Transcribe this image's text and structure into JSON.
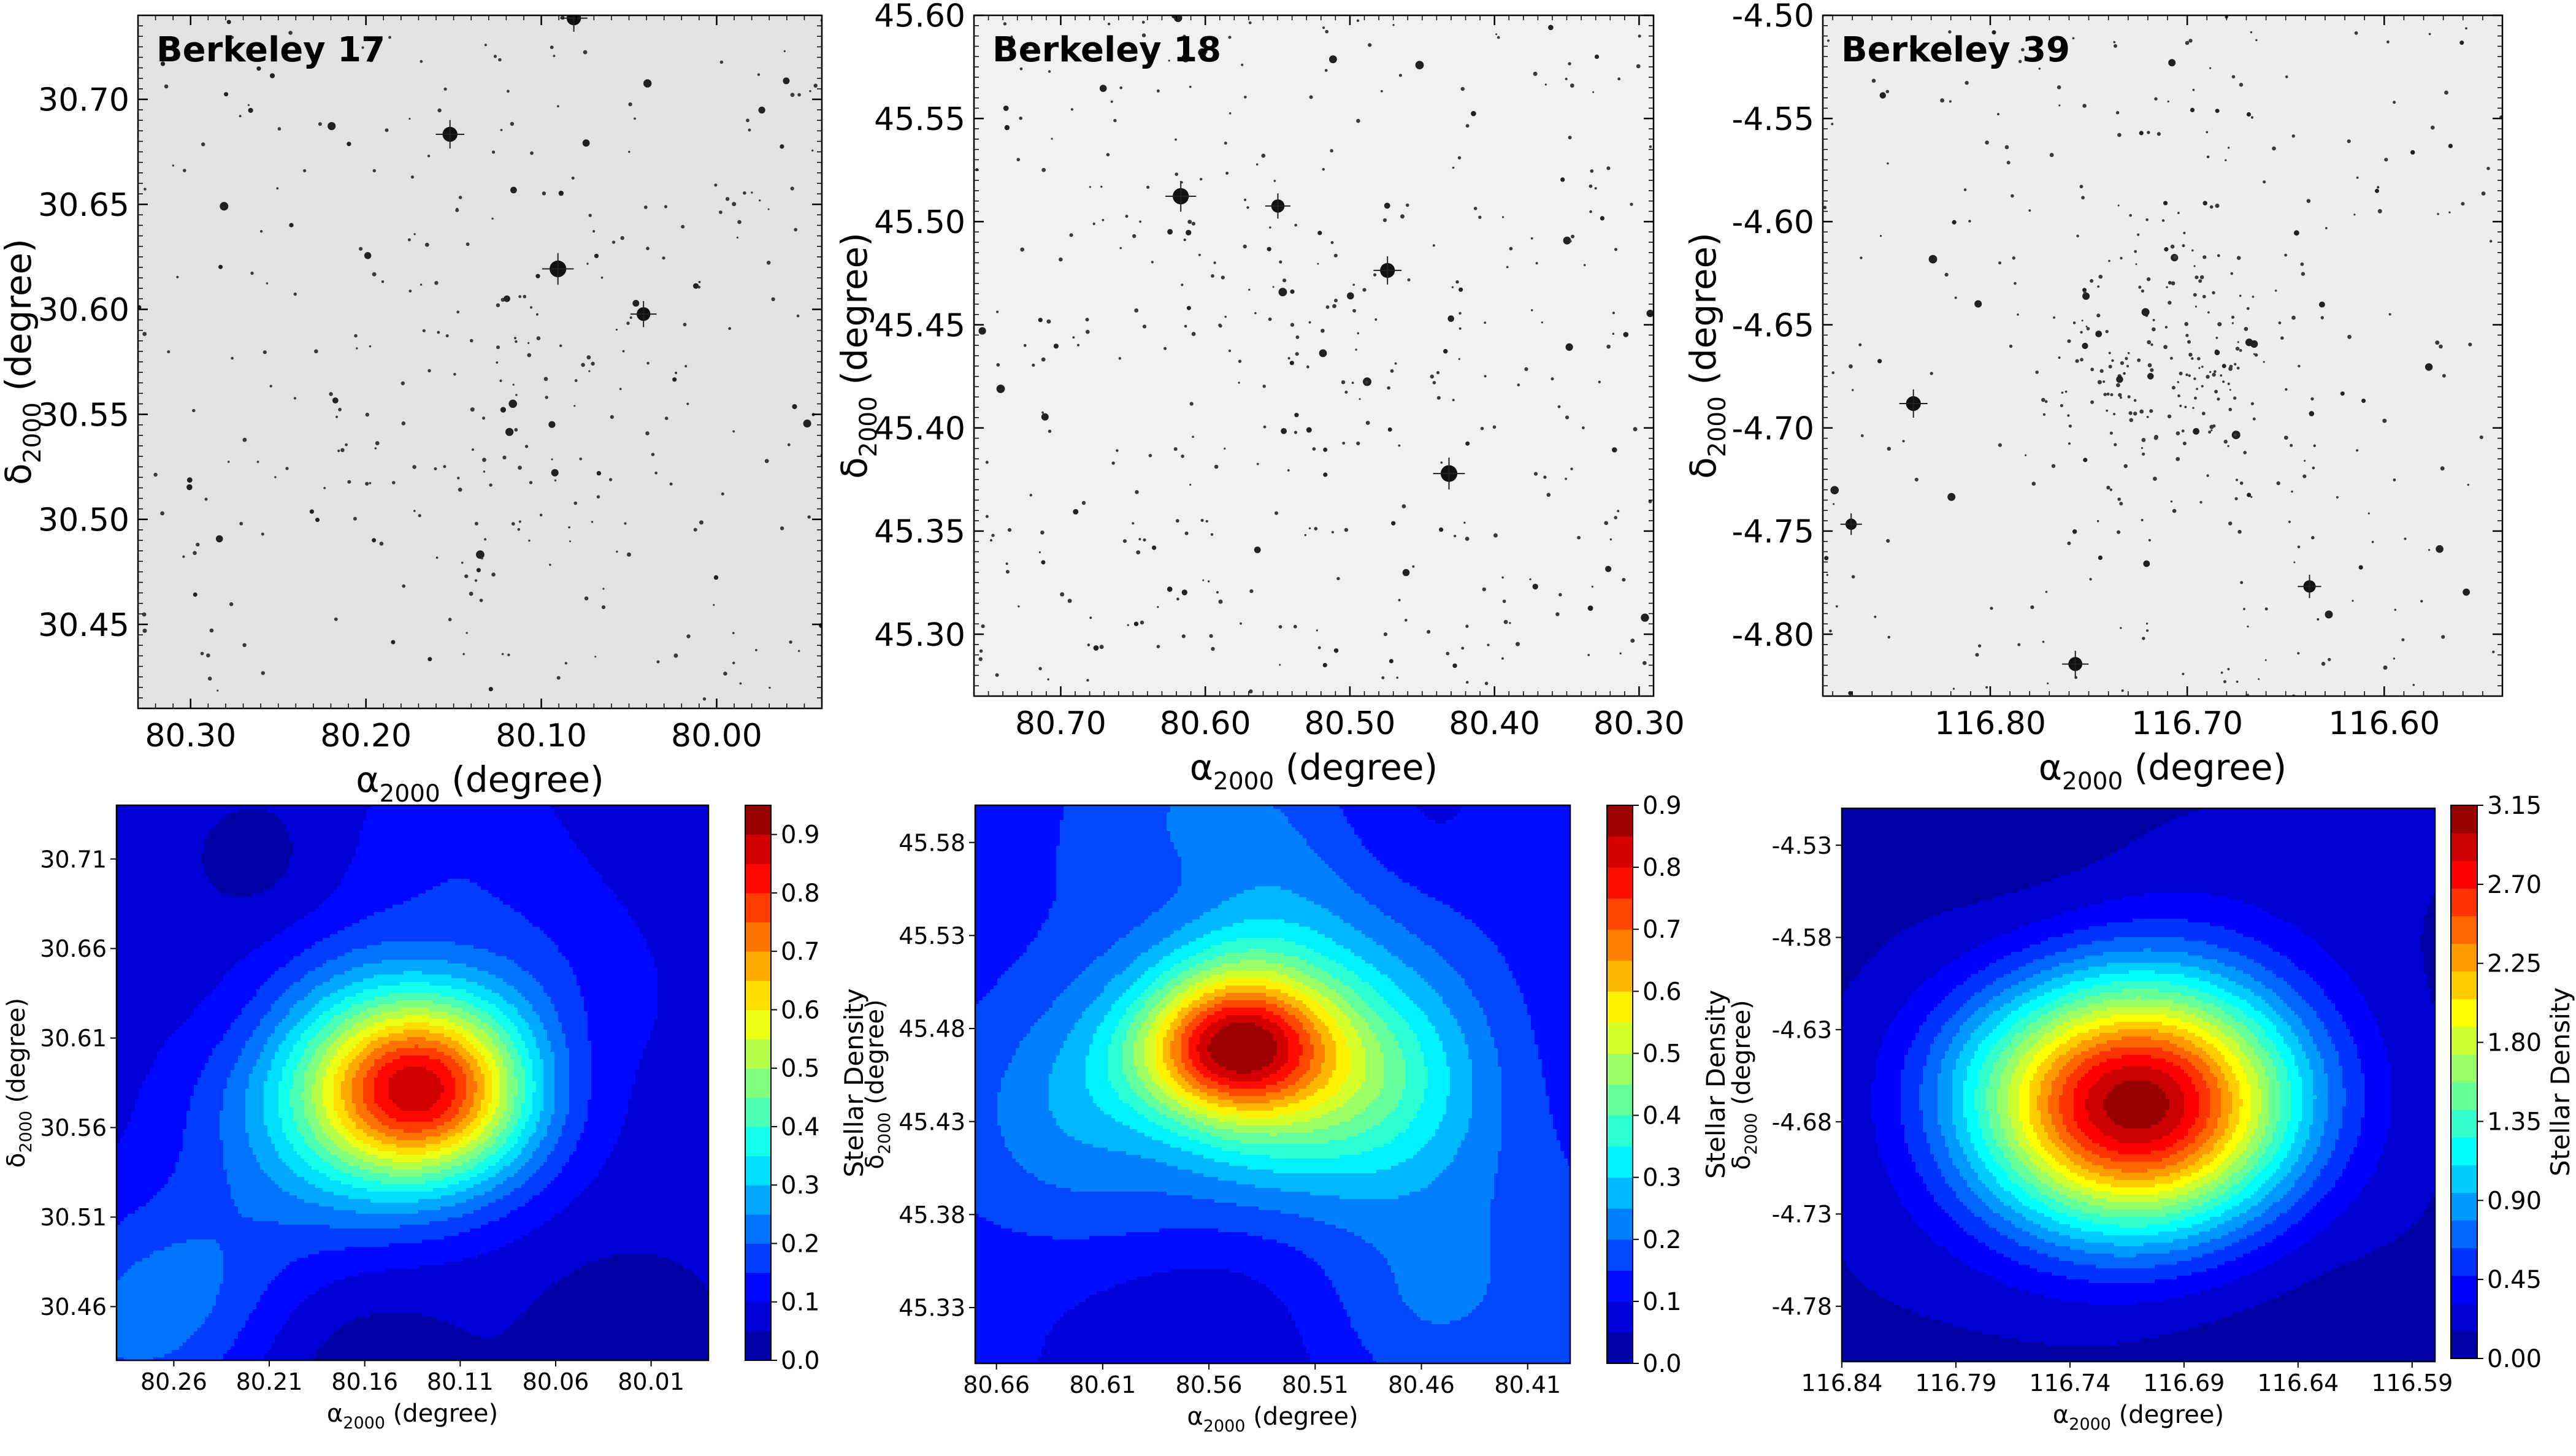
{
  "colormap": [
    "#00008f",
    "#0000ff",
    "#0080ff",
    "#00ffff",
    "#80ff80",
    "#ffff00",
    "#ff8000",
    "#ff0000",
    "#800000"
  ],
  "chart_data": [
    {
      "type": "image",
      "panel": "Berkeley 17 sky image",
      "title": "Berkeley 17",
      "xlabel_main": "α",
      "xlabel_sub": "2000",
      "xlabel_unit": " (degree)",
      "ylabel_main": "δ",
      "ylabel_sub": "2000",
      "ylabel_unit": " (degree)",
      "xlim": [
        80.33,
        79.94
      ],
      "ylim": [
        30.41,
        30.74
      ],
      "xticks": [
        80.3,
        80.2,
        80.1,
        80.0
      ],
      "xtick_labels": [
        "80.30",
        "80.20",
        "80.10",
        "80.00"
      ],
      "yticks": [
        30.45,
        30.5,
        30.55,
        30.6,
        30.65,
        30.7
      ],
      "ytick_labels": [
        "30.45",
        "30.50",
        "30.55",
        "30.60",
        "30.65",
        "30.70"
      ],
      "background": "#e2e2e2",
      "cluster_center": [
        80.13,
        30.57
      ],
      "star_seed": 17,
      "field_stars": 280,
      "cluster_stars": 60,
      "cluster_spread": 0.05
    },
    {
      "type": "image",
      "panel": "Berkeley 18 sky image",
      "title": "Berkeley 18",
      "xlabel_main": "α",
      "xlabel_sub": "2000",
      "xlabel_unit": " (degree)",
      "ylabel_main": "δ",
      "ylabel_sub": "2000",
      "ylabel_unit": " (degree)",
      "xlim": [
        80.76,
        80.29
      ],
      "ylim": [
        45.27,
        45.6
      ],
      "xticks": [
        80.7,
        80.6,
        80.5,
        80.4,
        80.3
      ],
      "xtick_labels": [
        "80.70",
        "80.60",
        "80.50",
        "80.40",
        "80.30"
      ],
      "yticks": [
        45.3,
        45.35,
        45.4,
        45.45,
        45.5,
        45.55,
        45.6
      ],
      "ytick_labels": [
        "45.30",
        "45.35",
        "45.40",
        "45.45",
        "45.50",
        "45.55",
        "45.60"
      ],
      "background": "#f0f0f0",
      "cluster_center": [
        80.55,
        45.46
      ],
      "star_seed": 18,
      "field_stars": 330,
      "cluster_stars": 70,
      "cluster_spread": 0.07
    },
    {
      "type": "image",
      "panel": "Berkeley 39 sky image",
      "title": "Berkeley 39",
      "xlabel_main": "α",
      "xlabel_sub": "2000",
      "xlabel_unit": " (degree)",
      "ylabel_main": "δ",
      "ylabel_sub": "2000",
      "ylabel_unit": " (degree)",
      "xlim": [
        116.885,
        116.54
      ],
      "ylim": [
        -4.83,
        -4.5
      ],
      "xticks": [
        116.8,
        116.7,
        116.6
      ],
      "xtick_labels": [
        "116.80",
        "116.70",
        "116.60"
      ],
      "yticks": [
        -4.8,
        -4.75,
        -4.7,
        -4.65,
        -4.6,
        -4.55,
        -4.5
      ],
      "ytick_labels": [
        "-4.80",
        "-4.75",
        "-4.70",
        "-4.65",
        "-4.60",
        "-4.55",
        "-4.50"
      ],
      "background": "#ededed",
      "cluster_center": [
        116.71,
        -4.67
      ],
      "star_seed": 39,
      "field_stars": 260,
      "cluster_stars": 190,
      "cluster_spread": 0.035
    },
    {
      "type": "contour",
      "panel": "Berkeley 17 stellar density map",
      "xlabel_main": "α",
      "xlabel_sub": "2000",
      "xlabel_unit": " (degree)",
      "ylabel_main": "δ",
      "ylabel_sub": "2000",
      "ylabel_unit": " (degree)",
      "xlim": [
        80.29,
        79.98
      ],
      "ylim": [
        30.43,
        30.74
      ],
      "xticks": [
        80.26,
        80.21,
        80.16,
        80.11,
        80.06,
        80.01
      ],
      "xtick_labels": [
        "80.26",
        "80.21",
        "80.16",
        "80.11",
        "80.06",
        "80.01"
      ],
      "yticks": [
        30.46,
        30.51,
        30.56,
        30.61,
        30.66,
        30.71
      ],
      "ytick_labels": [
        "30.46",
        "30.51",
        "30.56",
        "30.61",
        "30.66",
        "30.71"
      ],
      "colorbar_label": "Stellar Density",
      "colorbar_range": [
        0.0,
        0.95
      ],
      "colorbar_ticks": [
        0.0,
        0.1,
        0.2,
        0.3,
        0.4,
        0.5,
        0.6,
        0.7,
        0.8,
        0.9
      ],
      "colorbar_tick_labels": [
        "0.0",
        "0.1",
        "0.2",
        "0.3",
        "0.4",
        "0.5",
        "0.6",
        "0.7",
        "0.8",
        "0.9"
      ],
      "levels": 19,
      "base": 0.06,
      "peaks": [
        {
          "x": 80.13,
          "y": 30.58,
          "amp": 0.62,
          "sx": 0.04,
          "sy": 0.035
        },
        {
          "x": 80.18,
          "y": 30.57,
          "amp": 0.22,
          "sx": 0.055,
          "sy": 0.06
        },
        {
          "x": 80.1,
          "y": 30.62,
          "amp": 0.12,
          "sx": 0.06,
          "sy": 0.05
        }
      ],
      "noise_seed": 7,
      "noise_amp": 0.07
    },
    {
      "type": "contour",
      "panel": "Berkeley 18 stellar density map",
      "xlabel_main": "α",
      "xlabel_sub": "2000",
      "xlabel_unit": " (degree)",
      "ylabel_main": "δ",
      "ylabel_sub": "2000",
      "ylabel_unit": " (degree)",
      "xlim": [
        80.67,
        80.39
      ],
      "ylim": [
        45.3,
        45.6
      ],
      "xticks": [
        80.66,
        80.61,
        80.56,
        80.51,
        80.46,
        80.41
      ],
      "xtick_labels": [
        "80.66",
        "80.61",
        "80.56",
        "80.51",
        "80.46",
        "80.41"
      ],
      "yticks": [
        45.33,
        45.38,
        45.43,
        45.48,
        45.53,
        45.58
      ],
      "ytick_labels": [
        "45.33",
        "45.38",
        "45.43",
        "45.48",
        "45.53",
        "45.58"
      ],
      "colorbar_label": "Stellar Density",
      "colorbar_range": [
        0.0,
        0.9
      ],
      "colorbar_ticks": [
        0.0,
        0.1,
        0.2,
        0.3,
        0.4,
        0.5,
        0.6,
        0.7,
        0.8,
        0.9
      ],
      "colorbar_tick_labels": [
        "0.0",
        "0.1",
        "0.2",
        "0.3",
        "0.4",
        "0.5",
        "0.6",
        "0.7",
        "0.8",
        "0.9"
      ],
      "levels": 18,
      "base": 0.12,
      "peaks": [
        {
          "x": 80.55,
          "y": 45.47,
          "amp": 0.42,
          "sx": 0.03,
          "sy": 0.025
        },
        {
          "x": 80.53,
          "y": 45.45,
          "amp": 0.28,
          "sx": 0.06,
          "sy": 0.05
        },
        {
          "x": 80.6,
          "y": 45.43,
          "amp": 0.18,
          "sx": 0.05,
          "sy": 0.05
        },
        {
          "x": 80.48,
          "y": 45.46,
          "amp": 0.16,
          "sx": 0.05,
          "sy": 0.04
        }
      ],
      "noise_seed": 11,
      "noise_amp": 0.09
    },
    {
      "type": "contour",
      "panel": "Berkeley 39 stellar density map",
      "xlabel_main": "α",
      "xlabel_sub": "2000",
      "xlabel_unit": " (degree)",
      "ylabel_main": "δ",
      "ylabel_sub": "2000",
      "ylabel_unit": " (degree)",
      "xlim": [
        116.84,
        116.58
      ],
      "ylim": [
        -4.81,
        -4.51
      ],
      "xticks": [
        116.84,
        116.79,
        116.74,
        116.69,
        116.64,
        116.59
      ],
      "xtick_labels": [
        "116.84",
        "116.79",
        "116.74",
        "116.69",
        "116.64",
        "116.59"
      ],
      "yticks": [
        -4.78,
        -4.73,
        -4.68,
        -4.63,
        -4.58,
        -4.53
      ],
      "ytick_labels": [
        "-4.78",
        "-4.73",
        "-4.68",
        "-4.63",
        "-4.58",
        "-4.53"
      ],
      "colorbar_label": "Stellar Density",
      "colorbar_range": [
        0.0,
        3.15
      ],
      "colorbar_ticks": [
        0.0,
        0.45,
        0.9,
        1.35,
        1.8,
        2.25,
        2.7,
        3.15
      ],
      "colorbar_tick_labels": [
        "0.00",
        "0.45",
        "0.90",
        "1.35",
        "1.80",
        "2.25",
        "2.70",
        "3.15"
      ],
      "levels": 20,
      "base": 0.1,
      "peaks": [
        {
          "x": 116.71,
          "y": -4.672,
          "amp": 2.95,
          "sx": 0.05,
          "sy": 0.048
        }
      ],
      "noise_seed": 23,
      "noise_amp": 0.08
    }
  ]
}
